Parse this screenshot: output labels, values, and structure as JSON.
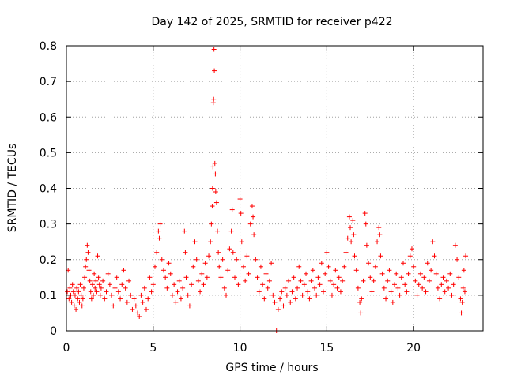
{
  "chart_data": {
    "type": "scatter",
    "title": "Day 142 of 2025, SRMTID for receiver p422",
    "xlabel": "GPS time / hours",
    "ylabel": "SRMTID / TECUs",
    "xlim": [
      0,
      24
    ],
    "ylim": [
      0,
      0.8
    ],
    "xticks": [
      0,
      5,
      10,
      15,
      20
    ],
    "yticks": [
      0,
      0.1,
      0.2,
      0.3,
      0.4,
      0.5,
      0.6,
      0.7,
      0.8
    ],
    "xtick_labels": [
      "0",
      "5",
      "10",
      "15",
      "20"
    ],
    "ytick_labels": [
      "0",
      "0.1",
      "0.2",
      "0.3",
      "0.4",
      "0.5",
      "0.6",
      "0.7",
      "0.8"
    ],
    "grid": true,
    "marker": "plus",
    "color": "#ff0000",
    "series": [
      {
        "name": "SRMTID",
        "points": [
          [
            0.05,
            0.11
          ],
          [
            0.1,
            0.17
          ],
          [
            0.15,
            0.09
          ],
          [
            0.2,
            0.12
          ],
          [
            0.25,
            0.1
          ],
          [
            0.3,
            0.08
          ],
          [
            0.35,
            0.13
          ],
          [
            0.4,
            0.11
          ],
          [
            0.45,
            0.07
          ],
          [
            0.5,
            0.1
          ],
          [
            0.55,
            0.06
          ],
          [
            0.6,
            0.12
          ],
          [
            0.65,
            0.09
          ],
          [
            0.7,
            0.11
          ],
          [
            0.75,
            0.08
          ],
          [
            0.8,
            0.13
          ],
          [
            0.85,
            0.1
          ],
          [
            0.9,
            0.07
          ],
          [
            0.95,
            0.09
          ],
          [
            1.0,
            0.12
          ],
          [
            1.05,
            0.15
          ],
          [
            1.1,
            0.18
          ],
          [
            1.15,
            0.2
          ],
          [
            1.2,
            0.24
          ],
          [
            1.25,
            0.22
          ],
          [
            1.3,
            0.17
          ],
          [
            1.35,
            0.14
          ],
          [
            1.4,
            0.11
          ],
          [
            1.45,
            0.09
          ],
          [
            1.5,
            0.13
          ],
          [
            1.55,
            0.1
          ],
          [
            1.6,
            0.16
          ],
          [
            1.65,
            0.12
          ],
          [
            1.7,
            0.14
          ],
          [
            1.75,
            0.11
          ],
          [
            1.8,
            0.21
          ],
          [
            1.85,
            0.15
          ],
          [
            1.9,
            0.13
          ],
          [
            1.95,
            0.1
          ],
          [
            2.0,
            0.12
          ],
          [
            2.1,
            0.14
          ],
          [
            2.2,
            0.09
          ],
          [
            2.3,
            0.11
          ],
          [
            2.4,
            0.16
          ],
          [
            2.5,
            0.13
          ],
          [
            2.6,
            0.1
          ],
          [
            2.7,
            0.07
          ],
          [
            2.8,
            0.12
          ],
          [
            2.9,
            0.15
          ],
          [
            3.0,
            0.11
          ],
          [
            3.1,
            0.09
          ],
          [
            3.2,
            0.13
          ],
          [
            3.3,
            0.17
          ],
          [
            3.4,
            0.12
          ],
          [
            3.5,
            0.08
          ],
          [
            3.6,
            0.14
          ],
          [
            3.7,
            0.1
          ],
          [
            3.8,
            0.06
          ],
          [
            3.9,
            0.09
          ],
          [
            4.0,
            0.07
          ],
          [
            4.1,
            0.05
          ],
          [
            4.2,
            0.04
          ],
          [
            4.3,
            0.1
          ],
          [
            4.4,
            0.08
          ],
          [
            4.5,
            0.12
          ],
          [
            4.6,
            0.06
          ],
          [
            4.7,
            0.09
          ],
          [
            4.8,
            0.15
          ],
          [
            4.9,
            0.11
          ],
          [
            5.0,
            0.13
          ],
          [
            5.1,
            0.18
          ],
          [
            5.2,
            0.22
          ],
          [
            5.3,
            0.28
          ],
          [
            5.35,
            0.26
          ],
          [
            5.4,
            0.3
          ],
          [
            5.5,
            0.2
          ],
          [
            5.6,
            0.17
          ],
          [
            5.7,
            0.15
          ],
          [
            5.8,
            0.12
          ],
          [
            5.9,
            0.19
          ],
          [
            6.0,
            0.16
          ],
          [
            6.1,
            0.1
          ],
          [
            6.2,
            0.13
          ],
          [
            6.3,
            0.08
          ],
          [
            6.4,
            0.11
          ],
          [
            6.5,
            0.14
          ],
          [
            6.6,
            0.09
          ],
          [
            6.7,
            0.12
          ],
          [
            6.8,
            0.28
          ],
          [
            6.85,
            0.22
          ],
          [
            6.9,
            0.15
          ],
          [
            7.0,
            0.1
          ],
          [
            7.1,
            0.07
          ],
          [
            7.2,
            0.13
          ],
          [
            7.3,
            0.18
          ],
          [
            7.4,
            0.25
          ],
          [
            7.5,
            0.2
          ],
          [
            7.6,
            0.14
          ],
          [
            7.7,
            0.11
          ],
          [
            7.8,
            0.16
          ],
          [
            7.9,
            0.13
          ],
          [
            8.0,
            0.19
          ],
          [
            8.1,
            0.15
          ],
          [
            8.2,
            0.21
          ],
          [
            8.3,
            0.25
          ],
          [
            8.35,
            0.3
          ],
          [
            8.4,
            0.35
          ],
          [
            8.42,
            0.4
          ],
          [
            8.44,
            0.46
          ],
          [
            8.46,
            0.64
          ],
          [
            8.48,
            0.65
          ],
          [
            8.5,
            0.79
          ],
          [
            8.52,
            0.73
          ],
          [
            8.55,
            0.47
          ],
          [
            8.58,
            0.44
          ],
          [
            8.6,
            0.39
          ],
          [
            8.65,
            0.36
          ],
          [
            8.7,
            0.28
          ],
          [
            8.75,
            0.22
          ],
          [
            8.8,
            0.18
          ],
          [
            8.9,
            0.15
          ],
          [
            9.0,
            0.2
          ],
          [
            9.1,
            0.12
          ],
          [
            9.2,
            0.1
          ],
          [
            9.3,
            0.17
          ],
          [
            9.4,
            0.23
          ],
          [
            9.5,
            0.28
          ],
          [
            9.55,
            0.34
          ],
          [
            9.6,
            0.22
          ],
          [
            9.7,
            0.15
          ],
          [
            9.8,
            0.2
          ],
          [
            9.9,
            0.13
          ],
          [
            10.0,
            0.37
          ],
          [
            10.05,
            0.33
          ],
          [
            10.1,
            0.25
          ],
          [
            10.2,
            0.18
          ],
          [
            10.3,
            0.14
          ],
          [
            10.4,
            0.21
          ],
          [
            10.5,
            0.16
          ],
          [
            10.6,
            0.3
          ],
          [
            10.7,
            0.35
          ],
          [
            10.75,
            0.32
          ],
          [
            10.8,
            0.27
          ],
          [
            10.9,
            0.2
          ],
          [
            11.0,
            0.15
          ],
          [
            11.1,
            0.11
          ],
          [
            11.2,
            0.18
          ],
          [
            11.3,
            0.13
          ],
          [
            11.4,
            0.09
          ],
          [
            11.5,
            0.16
          ],
          [
            11.6,
            0.12
          ],
          [
            11.7,
            0.14
          ],
          [
            11.8,
            0.19
          ],
          [
            11.9,
            0.1
          ],
          [
            12.0,
            0.08
          ],
          [
            12.1,
            0.0
          ],
          [
            12.2,
            0.06
          ],
          [
            12.3,
            0.09
          ],
          [
            12.4,
            0.11
          ],
          [
            12.5,
            0.07
          ],
          [
            12.6,
            0.12
          ],
          [
            12.7,
            0.1
          ],
          [
            12.8,
            0.14
          ],
          [
            12.9,
            0.08
          ],
          [
            13.0,
            0.11
          ],
          [
            13.1,
            0.15
          ],
          [
            13.2,
            0.09
          ],
          [
            13.3,
            0.12
          ],
          [
            13.4,
            0.18
          ],
          [
            13.5,
            0.14
          ],
          [
            13.6,
            0.1
          ],
          [
            13.7,
            0.13
          ],
          [
            13.8,
            0.16
          ],
          [
            13.9,
            0.11
          ],
          [
            14.0,
            0.09
          ],
          [
            14.1,
            0.14
          ],
          [
            14.2,
            0.17
          ],
          [
            14.3,
            0.12
          ],
          [
            14.4,
            0.1
          ],
          [
            14.5,
            0.15
          ],
          [
            14.6,
            0.13
          ],
          [
            14.7,
            0.19
          ],
          [
            14.8,
            0.11
          ],
          [
            14.9,
            0.16
          ],
          [
            15.0,
            0.22
          ],
          [
            15.1,
            0.18
          ],
          [
            15.2,
            0.14
          ],
          [
            15.3,
            0.1
          ],
          [
            15.4,
            0.13
          ],
          [
            15.5,
            0.17
          ],
          [
            15.6,
            0.12
          ],
          [
            15.7,
            0.15
          ],
          [
            15.8,
            0.11
          ],
          [
            15.9,
            0.14
          ],
          [
            16.0,
            0.18
          ],
          [
            16.1,
            0.22
          ],
          [
            16.2,
            0.26
          ],
          [
            16.3,
            0.32
          ],
          [
            16.35,
            0.29
          ],
          [
            16.4,
            0.25
          ],
          [
            16.5,
            0.31
          ],
          [
            16.55,
            0.27
          ],
          [
            16.6,
            0.21
          ],
          [
            16.7,
            0.17
          ],
          [
            16.8,
            0.12
          ],
          [
            16.9,
            0.08
          ],
          [
            16.95,
            0.05
          ],
          [
            17.0,
            0.09
          ],
          [
            17.1,
            0.14
          ],
          [
            17.2,
            0.33
          ],
          [
            17.25,
            0.3
          ],
          [
            17.3,
            0.24
          ],
          [
            17.4,
            0.19
          ],
          [
            17.5,
            0.15
          ],
          [
            17.6,
            0.11
          ],
          [
            17.7,
            0.14
          ],
          [
            17.8,
            0.18
          ],
          [
            17.9,
            0.25
          ],
          [
            18.0,
            0.29
          ],
          [
            18.05,
            0.27
          ],
          [
            18.1,
            0.21
          ],
          [
            18.2,
            0.16
          ],
          [
            18.3,
            0.12
          ],
          [
            18.4,
            0.09
          ],
          [
            18.5,
            0.14
          ],
          [
            18.6,
            0.17
          ],
          [
            18.7,
            0.11
          ],
          [
            18.8,
            0.08
          ],
          [
            18.9,
            0.13
          ],
          [
            19.0,
            0.16
          ],
          [
            19.1,
            0.12
          ],
          [
            19.2,
            0.1
          ],
          [
            19.3,
            0.15
          ],
          [
            19.4,
            0.19
          ],
          [
            19.5,
            0.13
          ],
          [
            19.6,
            0.11
          ],
          [
            19.7,
            0.16
          ],
          [
            19.8,
            0.21
          ],
          [
            19.9,
            0.23
          ],
          [
            20.0,
            0.18
          ],
          [
            20.1,
            0.14
          ],
          [
            20.2,
            0.1
          ],
          [
            20.3,
            0.13
          ],
          [
            20.4,
            0.16
          ],
          [
            20.5,
            0.12
          ],
          [
            20.6,
            0.15
          ],
          [
            20.7,
            0.11
          ],
          [
            20.8,
            0.19
          ],
          [
            20.9,
            0.14
          ],
          [
            21.0,
            0.17
          ],
          [
            21.1,
            0.25
          ],
          [
            21.2,
            0.21
          ],
          [
            21.3,
            0.16
          ],
          [
            21.4,
            0.12
          ],
          [
            21.5,
            0.09
          ],
          [
            21.6,
            0.13
          ],
          [
            21.7,
            0.15
          ],
          [
            21.8,
            0.11
          ],
          [
            21.9,
            0.14
          ],
          [
            22.0,
            0.12
          ],
          [
            22.1,
            0.16
          ],
          [
            22.2,
            0.1
          ],
          [
            22.3,
            0.13
          ],
          [
            22.4,
            0.24
          ],
          [
            22.5,
            0.2
          ],
          [
            22.6,
            0.15
          ],
          [
            22.7,
            0.09
          ],
          [
            22.75,
            0.05
          ],
          [
            22.8,
            0.08
          ],
          [
            22.85,
            0.12
          ],
          [
            22.9,
            0.17
          ],
          [
            22.95,
            0.11
          ],
          [
            23.0,
            0.21
          ]
        ]
      }
    ]
  }
}
